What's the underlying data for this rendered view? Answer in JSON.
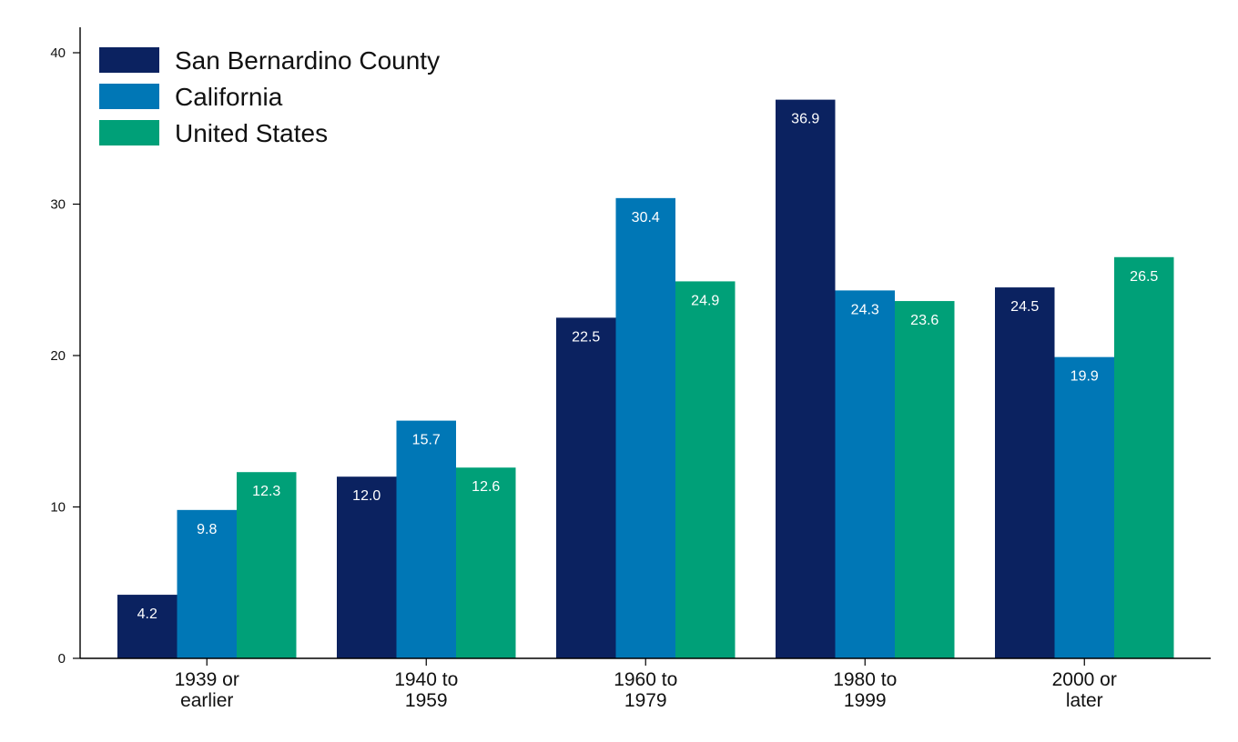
{
  "chart_data": {
    "type": "bar",
    "title": "",
    "xlabel": "",
    "ylabel": "",
    "ylim": [
      0,
      40
    ],
    "yticks": [
      0,
      10,
      20,
      30,
      40
    ],
    "grid": false,
    "legend_position": "top-left",
    "categories": [
      [
        "1939 or",
        "earlier"
      ],
      [
        "1940 to",
        "1959"
      ],
      [
        "1960 to",
        "1979"
      ],
      [
        "1980 to",
        "1999"
      ],
      [
        "2000 or",
        "later"
      ]
    ],
    "series": [
      {
        "name": "San Bernardino County",
        "color": "#0b2260",
        "values": [
          4.2,
          12.0,
          22.5,
          36.9,
          24.5
        ],
        "labels": [
          "4.2",
          "12.0",
          "22.5",
          "36.9",
          "24.5"
        ]
      },
      {
        "name": "California",
        "color": "#0077b6",
        "values": [
          9.8,
          15.7,
          30.4,
          24.3,
          19.9
        ],
        "labels": [
          "9.8",
          "15.7",
          "30.4",
          "24.3",
          "19.9"
        ]
      },
      {
        "name": "United States",
        "color": "#00a078",
        "values": [
          12.3,
          12.6,
          24.9,
          23.6,
          26.5
        ],
        "labels": [
          "12.3",
          "12.6",
          "24.9",
          "23.6",
          "26.5"
        ]
      }
    ]
  }
}
